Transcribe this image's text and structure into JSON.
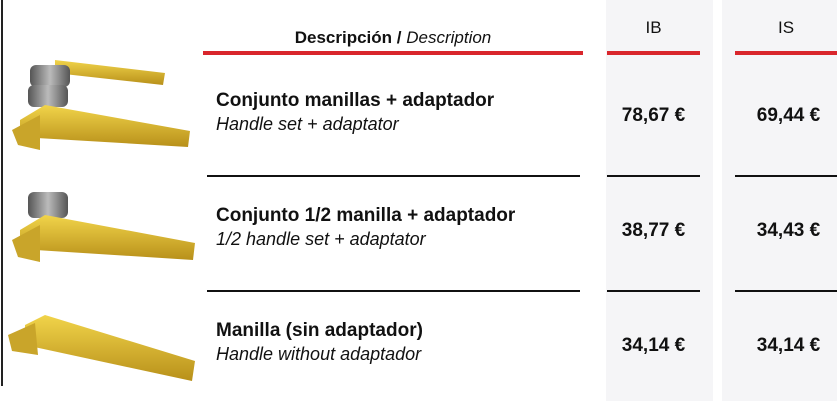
{
  "header": {
    "description_bold": "Descripción /",
    "description_italic": "Description",
    "ib": "IB",
    "is": "IS"
  },
  "table": {
    "rows": [
      {
        "name": "Conjunto manillas + adaptador",
        "translation": "Handle set + adaptator",
        "ib": "78,67 €",
        "is": "69,44 €"
      },
      {
        "name": "Conjunto 1/2 manilla + adaptador",
        "translation": "1/2 handle set + adaptator",
        "ib": "38,77 €",
        "is": "34,43 €"
      },
      {
        "name": "Manilla (sin adaptador)",
        "translation": "Handle without adaptador",
        "ib": "34,14 €",
        "is": "34,14 €"
      }
    ]
  }
}
